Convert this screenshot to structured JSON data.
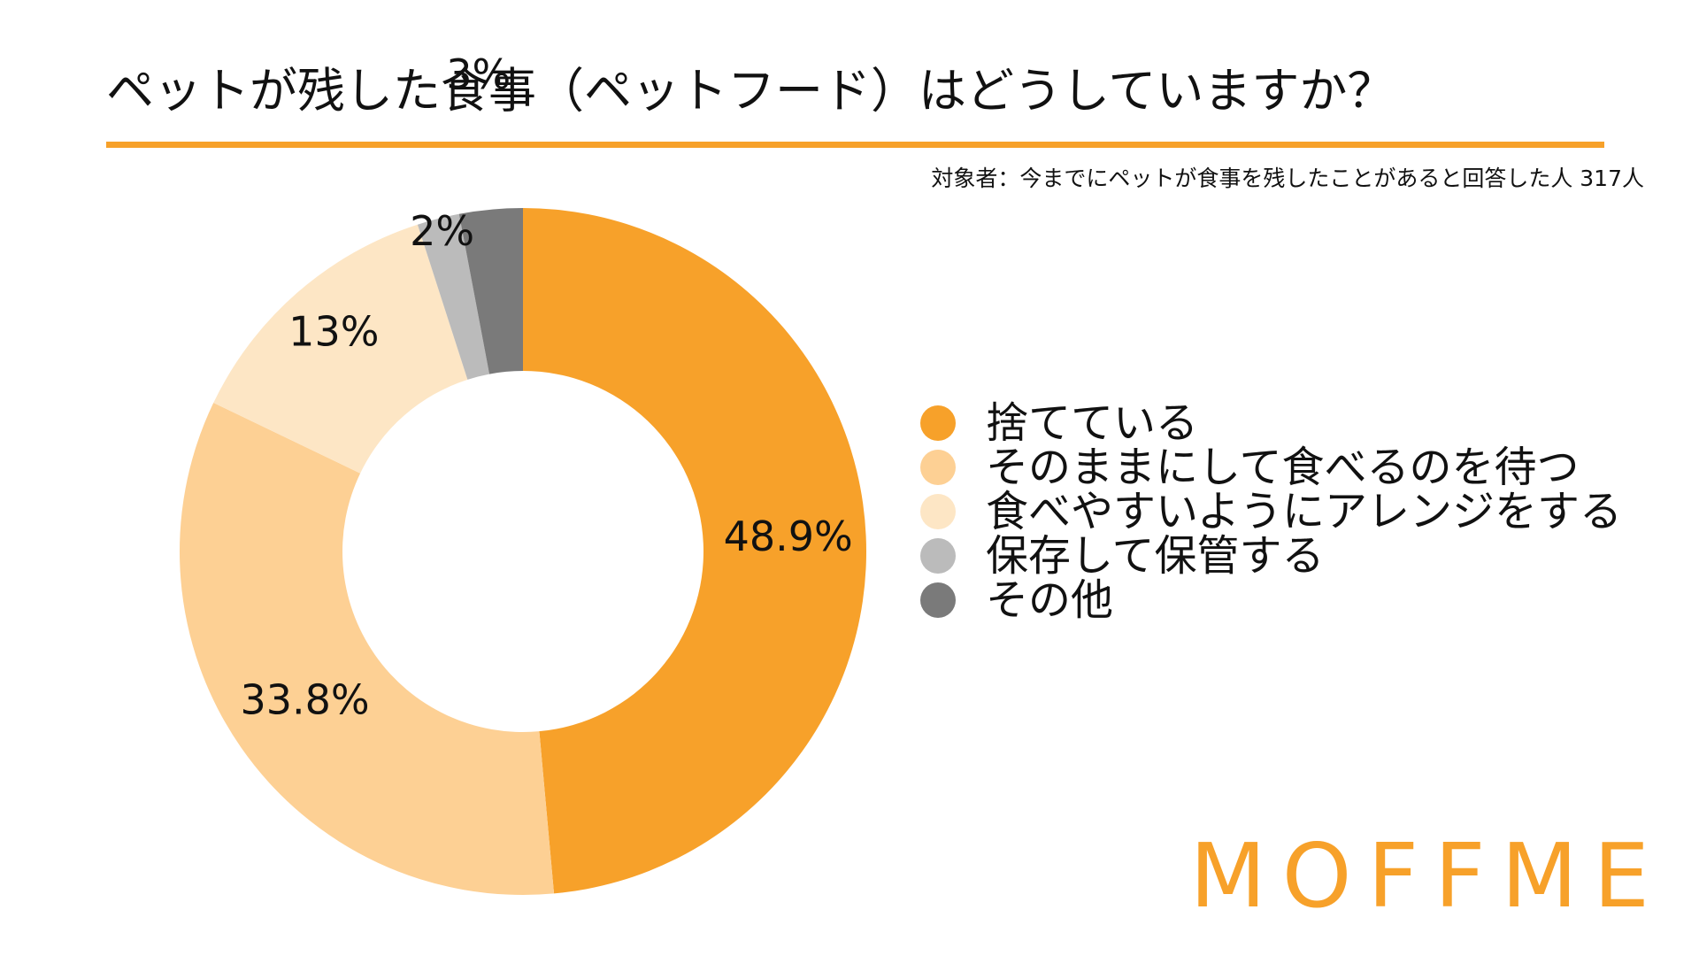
{
  "colors": {
    "accent": "#F7A12A",
    "text": "#111111",
    "background": "#FFFFFF"
  },
  "chart_data": {
    "type": "pie",
    "title": "ペットが残した食事（ペットフード）はどうしていますか？",
    "subtitle": "対象者：今までにペットが食事を残したことがあると回答した人 317人",
    "legend_position": "right",
    "slices": [
      {
        "label": "捨てている",
        "value": 48.9,
        "display": "48.9%",
        "color": "#F7A12A"
      },
      {
        "label": "そのままにして食べるのを待つ",
        "value": 33.8,
        "display": "33.8%",
        "color": "#FDD094"
      },
      {
        "label": "食べやすいようにアレンジをする",
        "value": 13,
        "display": "13%",
        "color": "#FDE6C5"
      },
      {
        "label": "保存して保管する",
        "value": 2,
        "display": "2%",
        "color": "#BBBBBB"
      },
      {
        "label": "その他",
        "value": 3,
        "display": "3%",
        "color": "#7A7A7A"
      }
    ]
  },
  "branding": {
    "logo_text": "MOFFME"
  }
}
